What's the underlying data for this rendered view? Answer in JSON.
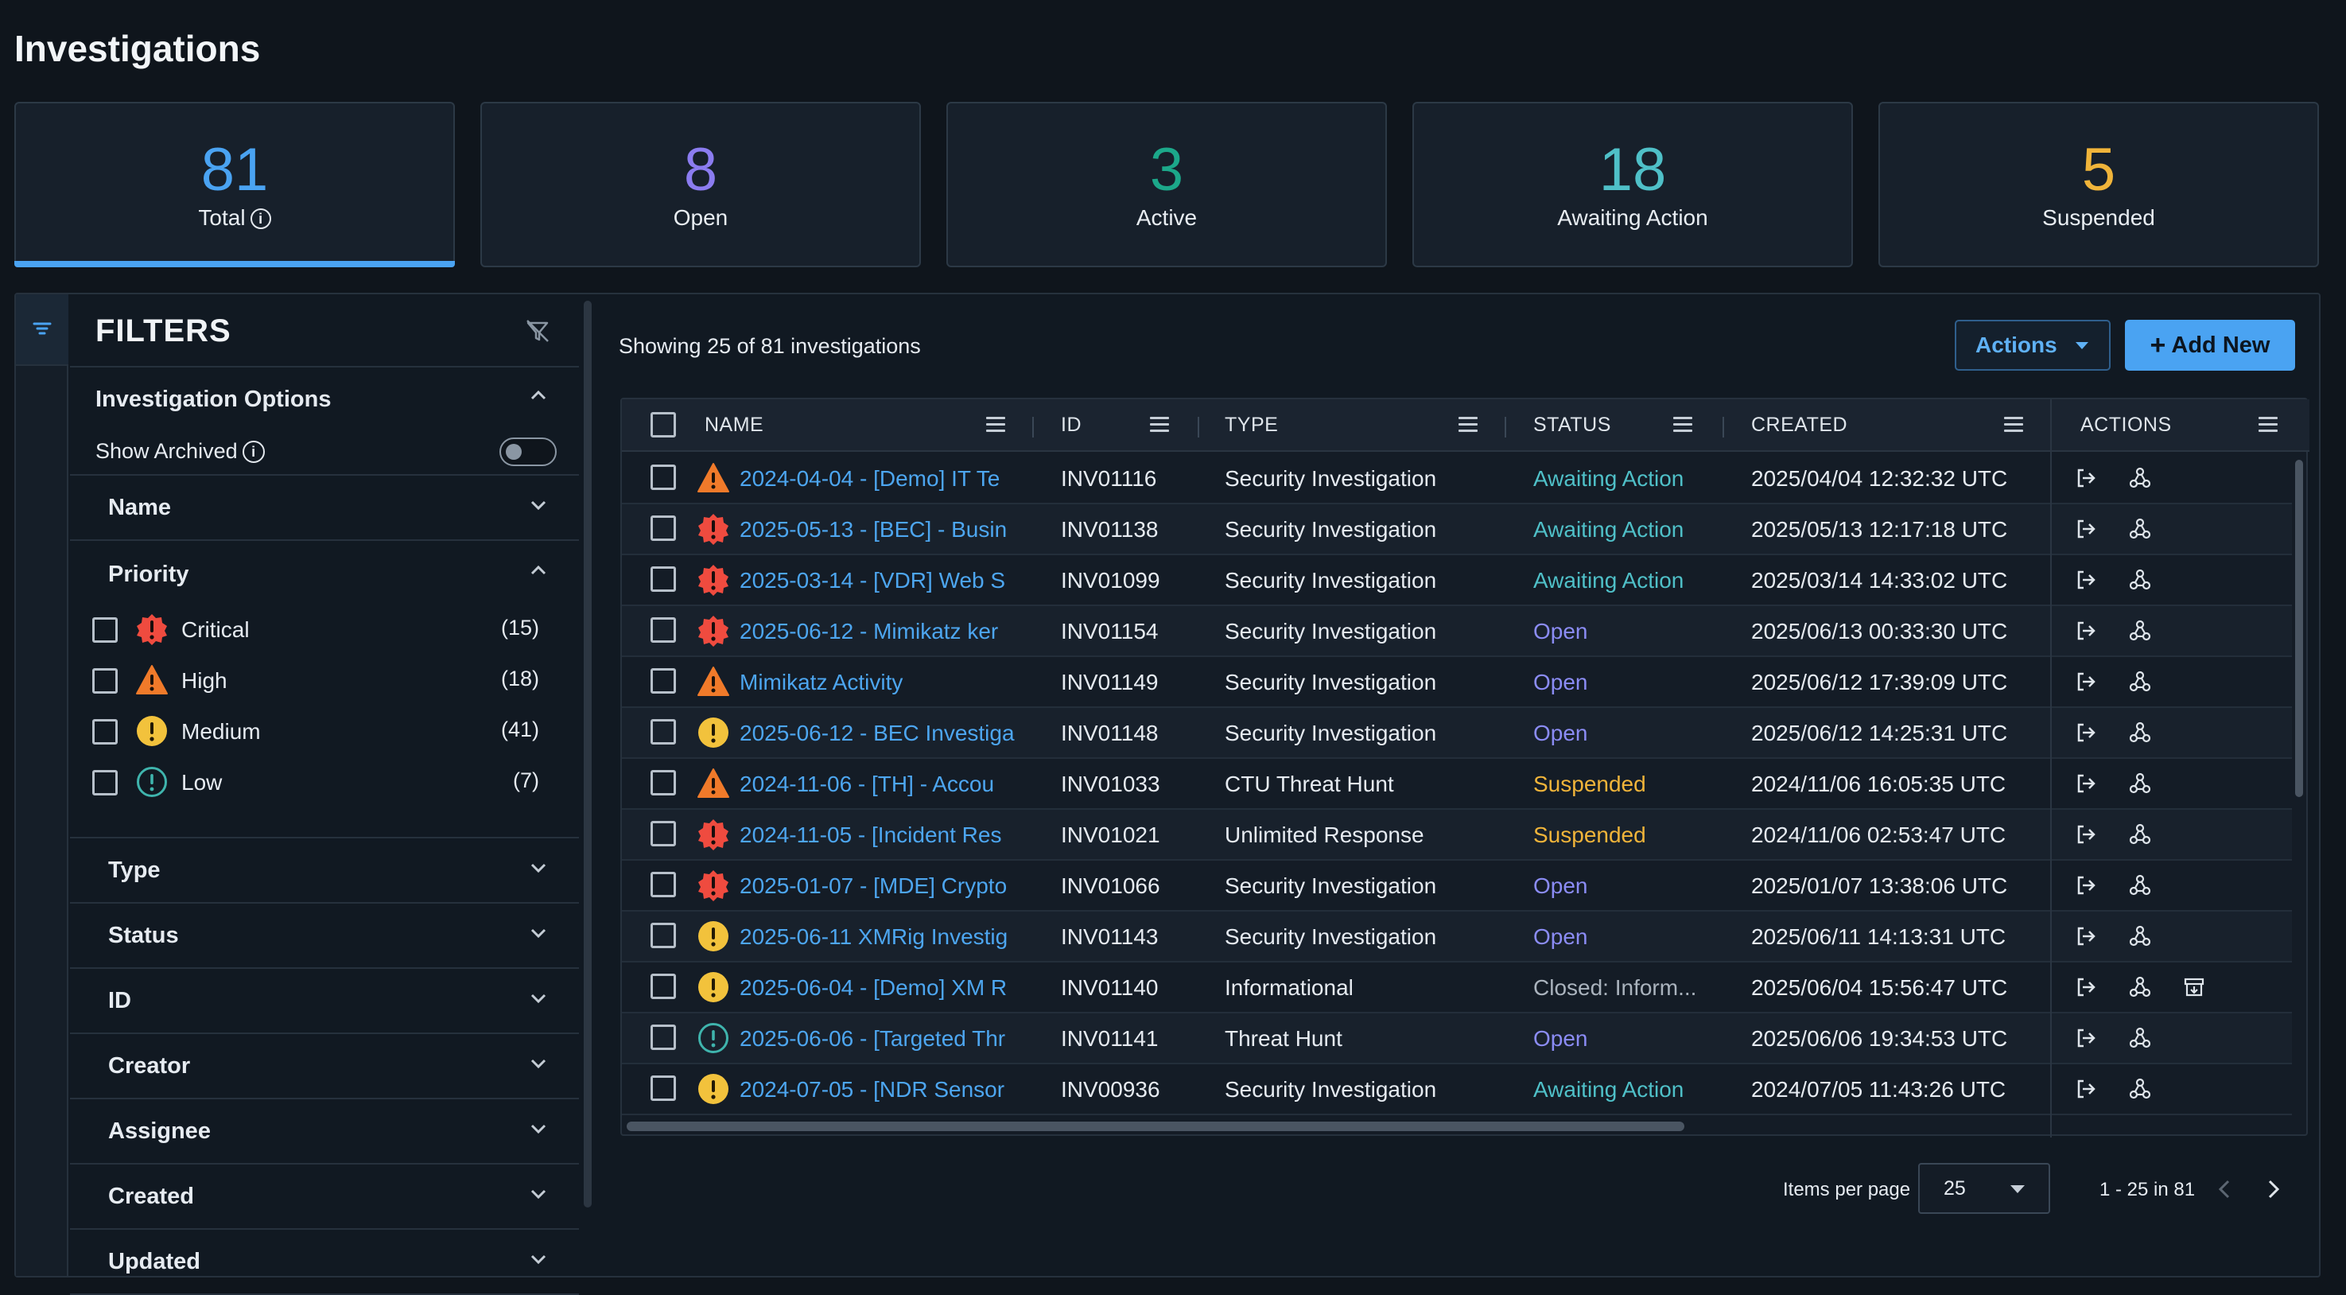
{
  "page_title": "Investigations",
  "stats": [
    {
      "value": "81",
      "label": "Total",
      "color": "#4aa3f2",
      "has_info": true,
      "selected": true
    },
    {
      "value": "8",
      "label": "Open",
      "color": "#8b7cf0"
    },
    {
      "value": "3",
      "label": "Active",
      "color": "#1ca88a"
    },
    {
      "value": "18",
      "label": "Awaiting Action",
      "color": "#4fc0c8"
    },
    {
      "value": "5",
      "label": "Suspended",
      "color": "#f0b43a"
    }
  ],
  "filters": {
    "title": "FILTERS",
    "investigation_options": "Investigation Options",
    "show_archived": "Show Archived",
    "show_archived_on": false,
    "name": "Name",
    "priority": "Priority",
    "priorities": [
      {
        "label": "Critical",
        "count": "(15)",
        "icon": "critical-icon"
      },
      {
        "label": "High",
        "count": "(18)",
        "icon": "high-icon"
      },
      {
        "label": "Medium",
        "count": "(41)",
        "icon": "medium-icon"
      },
      {
        "label": "Low",
        "count": "(7)",
        "icon": "low-icon"
      }
    ],
    "sections": [
      "Type",
      "Status",
      "ID",
      "Creator",
      "Assignee",
      "Created",
      "Updated"
    ]
  },
  "showing_text": "Showing 25 of 81 investigations",
  "actions_label": "Actions",
  "add_new_label": "Add New",
  "table": {
    "headers": {
      "name": "NAME",
      "id": "ID",
      "type": "TYPE",
      "status": "STATUS",
      "created": "CREATED",
      "actions": "ACTIONS"
    },
    "rows": [
      {
        "priority": "high",
        "name": "2024-04-04 - [Demo] IT Te",
        "id": "INV01116",
        "type": "Security Investigation",
        "status": "Awaiting Action",
        "created": "2025/04/04 12:32:32 UTC",
        "archive": false
      },
      {
        "priority": "critical",
        "name": "2025-05-13 - [BEC] - Busin",
        "id": "INV01138",
        "type": "Security Investigation",
        "status": "Awaiting Action",
        "created": "2025/05/13 12:17:18 UTC",
        "archive": false
      },
      {
        "priority": "critical",
        "name": "2025-03-14 - [VDR] Web S",
        "id": "INV01099",
        "type": "Security Investigation",
        "status": "Awaiting Action",
        "created": "2025/03/14 14:33:02 UTC",
        "archive": false
      },
      {
        "priority": "critical",
        "name": "2025-06-12 - Mimikatz ker",
        "id": "INV01154",
        "type": "Security Investigation",
        "status": "Open",
        "created": "2025/06/13 00:33:30 UTC",
        "archive": false
      },
      {
        "priority": "high",
        "name": "Mimikatz Activity",
        "id": "INV01149",
        "type": "Security Investigation",
        "status": "Open",
        "created": "2025/06/12 17:39:09 UTC",
        "archive": false
      },
      {
        "priority": "medium",
        "name": "2025-06-12 - BEC Investiga",
        "id": "INV01148",
        "type": "Security Investigation",
        "status": "Open",
        "created": "2025/06/12 14:25:31 UTC",
        "archive": false
      },
      {
        "priority": "high",
        "name": "2024-11-06 - [TH] - Accou",
        "id": "INV01033",
        "type": "CTU Threat Hunt",
        "status": "Suspended",
        "created": "2024/11/06 16:05:35 UTC",
        "archive": false
      },
      {
        "priority": "critical",
        "name": "2024-11-05 - [Incident Res",
        "id": "INV01021",
        "type": "Unlimited Response",
        "status": "Suspended",
        "created": "2024/11/06 02:53:47 UTC",
        "archive": false
      },
      {
        "priority": "critical",
        "name": "2025-01-07 - [MDE] Crypto",
        "id": "INV01066",
        "type": "Security Investigation",
        "status": "Open",
        "created": "2025/01/07 13:38:06 UTC",
        "archive": false
      },
      {
        "priority": "medium",
        "name": "2025-06-11 XMRig Investig",
        "id": "INV01143",
        "type": "Security Investigation",
        "status": "Open",
        "created": "2025/06/11 14:13:31 UTC",
        "archive": false
      },
      {
        "priority": "medium",
        "name": "2025-06-04 - [Demo] XM R",
        "id": "INV01140",
        "type": "Informational",
        "status": "Closed: Inform...",
        "created": "2025/06/04 15:56:47 UTC",
        "archive": true
      },
      {
        "priority": "low",
        "name": "2025-06-06 - [Targeted Thr",
        "id": "INV01141",
        "type": "Threat Hunt",
        "status": "Open",
        "created": "2025/06/06 19:34:53 UTC",
        "archive": false
      },
      {
        "priority": "medium",
        "name": "2024-07-05 - [NDR Sensor",
        "id": "INV00936",
        "type": "Security Investigation",
        "status": "Awaiting Action",
        "created": "2024/07/05 11:43:26 UTC",
        "archive": false
      }
    ]
  },
  "status_colors": {
    "Awaiting Action": "#4fc0c8",
    "Open": "#8b8cf5",
    "Suspended": "#f0b43a",
    "Closed: Inform...": "#aab3bd"
  },
  "pagination": {
    "items_per_page_label": "Items per page",
    "items_per_page": "25",
    "range": "1 - 25 in 81"
  }
}
